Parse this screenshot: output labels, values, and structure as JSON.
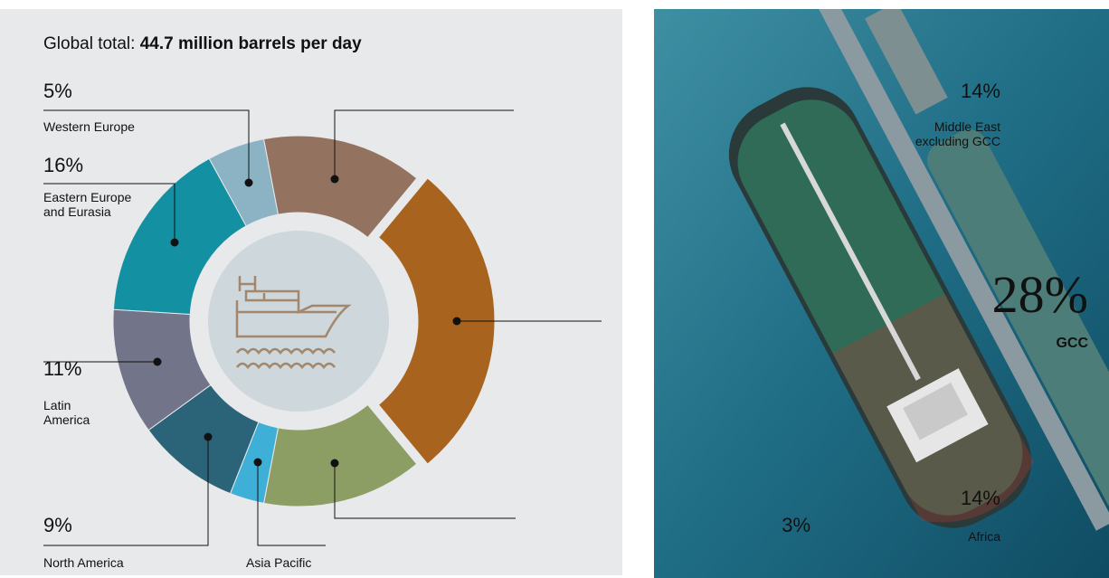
{
  "chart_data": {
    "type": "donut",
    "title_label": "Global total:",
    "title_value": "44.7 million barrels per day",
    "categories": [
      "GCC",
      "Africa",
      "Asia Pacific",
      "North America",
      "Latin America",
      "Eastern Europe and Eurasia",
      "Western Europe",
      "Middle East excluding GCC"
    ],
    "values": [
      28,
      14,
      3,
      9,
      11,
      16,
      5,
      14
    ],
    "value_labels": [
      "28%",
      "14%",
      "3%",
      "9%",
      "11%",
      "16%",
      "5%",
      "14%"
    ],
    "colors": [
      "#a8641f",
      "#8c9e64",
      "#3eafd6",
      "#2b6478",
      "#727489",
      "#1390a1",
      "#8bb3c3",
      "#93725f"
    ]
  }
}
